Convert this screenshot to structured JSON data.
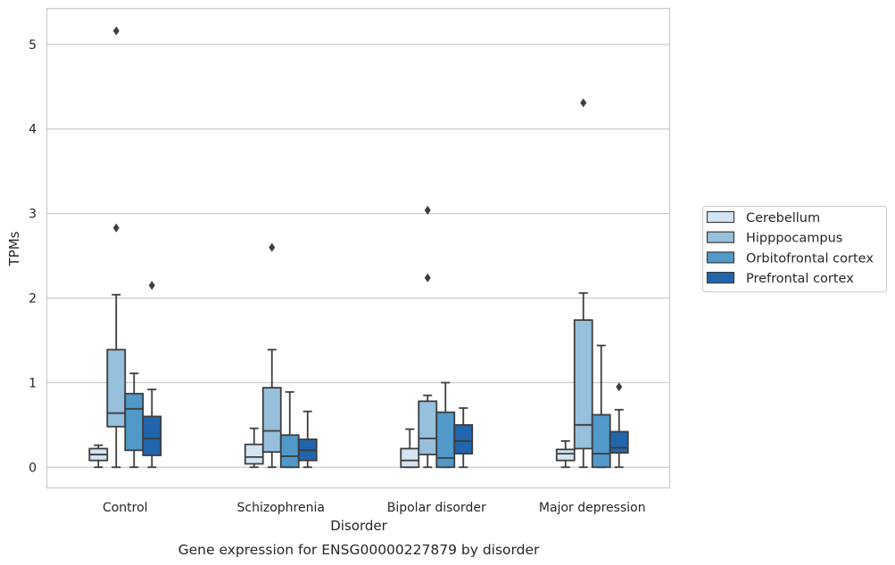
{
  "caption": "Gene expression for ENSG00000227879 by disorder",
  "chart_data": {
    "type": "box",
    "title": "",
    "xlabel": "Disorder",
    "ylabel": "TPMs",
    "ylim": [
      -0.25,
      5.42
    ],
    "yticks": [
      0,
      1,
      2,
      3,
      4,
      5
    ],
    "grid": "horizontal",
    "legend_position": "right",
    "categories": [
      "Control",
      "Schizophrenia",
      "Bipolar disorder",
      "Major depression"
    ],
    "series": [
      {
        "name": "Cerebellum",
        "color": "#d3e4f2",
        "boxes": [
          {
            "whisker_low": 0.0,
            "q1": 0.08,
            "median": 0.15,
            "q3": 0.22,
            "whisker_high": 0.26,
            "outliers": []
          },
          {
            "whisker_low": 0.0,
            "q1": 0.04,
            "median": 0.12,
            "q3": 0.27,
            "whisker_high": 0.46,
            "outliers": []
          },
          {
            "whisker_low": 0.0,
            "q1": 0.0,
            "median": 0.08,
            "q3": 0.22,
            "whisker_high": 0.45,
            "outliers": []
          },
          {
            "whisker_low": 0.0,
            "q1": 0.08,
            "median": 0.16,
            "q3": 0.21,
            "whisker_high": 0.31,
            "outliers": []
          }
        ]
      },
      {
        "name": "Hipppocampus",
        "color": "#96c0dc",
        "boxes": [
          {
            "whisker_low": 0.0,
            "q1": 0.48,
            "median": 0.64,
            "q3": 1.39,
            "whisker_high": 2.04,
            "outliers": [
              2.83,
              5.16
            ]
          },
          {
            "whisker_low": 0.0,
            "q1": 0.18,
            "median": 0.43,
            "q3": 0.94,
            "whisker_high": 1.39,
            "outliers": [
              2.6
            ]
          },
          {
            "whisker_low": 0.0,
            "q1": 0.15,
            "median": 0.34,
            "q3": 0.78,
            "whisker_high": 0.85,
            "outliers": [
              2.24,
              3.04
            ]
          },
          {
            "whisker_low": 0.0,
            "q1": 0.22,
            "median": 0.5,
            "q3": 1.74,
            "whisker_high": 2.06,
            "outliers": [
              4.31
            ]
          }
        ]
      },
      {
        "name": "Orbitofrontal cortex",
        "color": "#5099c8",
        "boxes": [
          {
            "whisker_low": 0.0,
            "q1": 0.2,
            "median": 0.69,
            "q3": 0.87,
            "whisker_high": 1.11,
            "outliers": []
          },
          {
            "whisker_low": 0.0,
            "q1": 0.0,
            "median": 0.13,
            "q3": 0.38,
            "whisker_high": 0.89,
            "outliers": []
          },
          {
            "whisker_low": 0.0,
            "q1": 0.0,
            "median": 0.11,
            "q3": 0.65,
            "whisker_high": 1.0,
            "outliers": []
          },
          {
            "whisker_low": 0.0,
            "q1": 0.0,
            "median": 0.16,
            "q3": 0.62,
            "whisker_high": 1.44,
            "outliers": []
          }
        ]
      },
      {
        "name": "Prefrontal cortex",
        "color": "#2166ac",
        "boxes": [
          {
            "whisker_low": 0.0,
            "q1": 0.14,
            "median": 0.34,
            "q3": 0.6,
            "whisker_high": 0.92,
            "outliers": [
              2.15
            ]
          },
          {
            "whisker_low": 0.0,
            "q1": 0.08,
            "median": 0.2,
            "q3": 0.33,
            "whisker_high": 0.66,
            "outliers": []
          },
          {
            "whisker_low": 0.0,
            "q1": 0.16,
            "median": 0.31,
            "q3": 0.5,
            "whisker_high": 0.7,
            "outliers": []
          },
          {
            "whisker_low": 0.0,
            "q1": 0.17,
            "median": 0.23,
            "q3": 0.42,
            "whisker_high": 0.68,
            "outliers": [
              0.95
            ]
          }
        ]
      }
    ]
  }
}
